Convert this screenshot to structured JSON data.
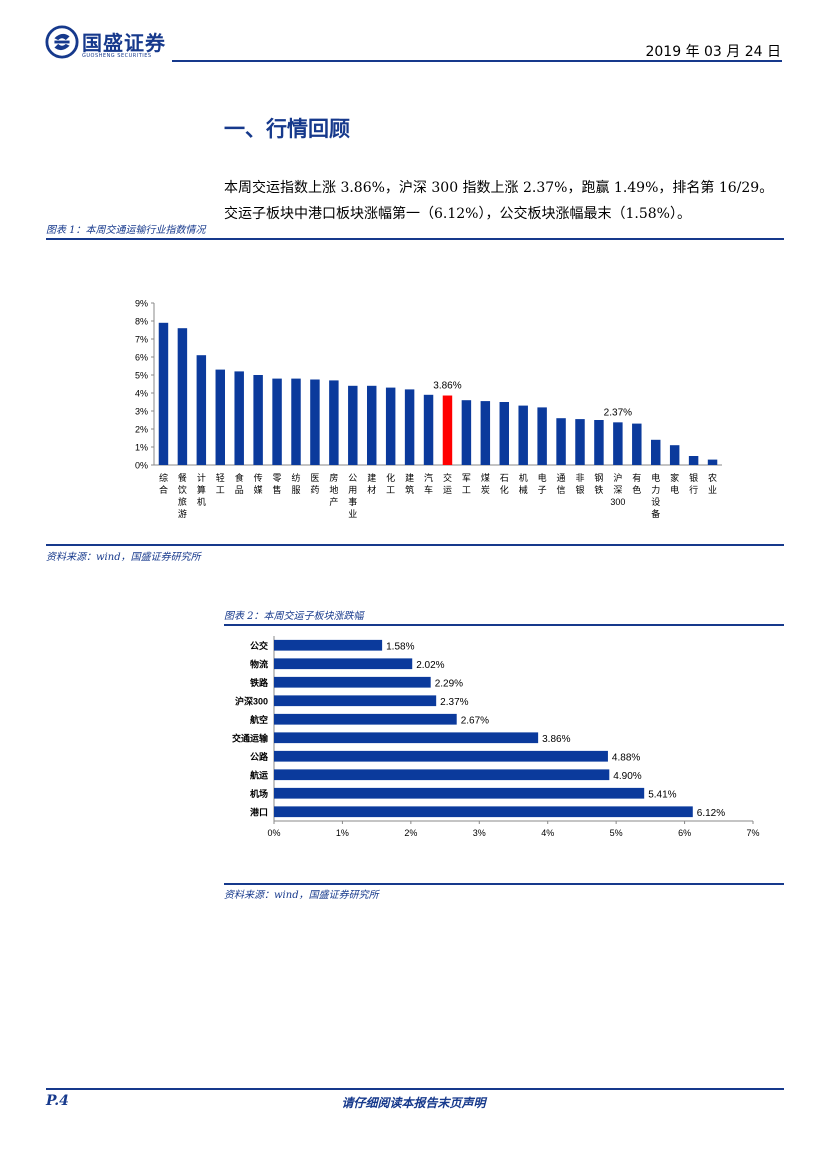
{
  "header": {
    "logo_name": "国盛证券",
    "logo_sub": "GUOSHENG SECURITIES",
    "date": "2019 年 03 月 24 日"
  },
  "section": {
    "title": "一、行情回顾",
    "paragraph": "本周交运指数上涨 3.86%，沪深 300 指数上涨 2.37%，跑赢 1.49%，排名第 16/29。交运子板块中港口板块涨幅第一（6.12%），公交板块涨幅最末（1.58%）。"
  },
  "figure1": {
    "title": "图表 1：本周交通运输行业指数情况",
    "source": "资料来源：wind，国盛证券研究所"
  },
  "figure2": {
    "title": "图表 2：本周交运子板块涨跌幅",
    "source": "资料来源：wind，国盛证券研究所"
  },
  "footer": {
    "page": "P.4",
    "disclaimer": "请仔细阅读本报告末页声明"
  },
  "colors": {
    "brand": "#16398c",
    "bar": "#0b3a9c",
    "highlight": "#ff0000"
  },
  "chart_data": [
    {
      "type": "bar",
      "categories": [
        "综合",
        "餐饮旅游",
        "计算机",
        "轻工",
        "食品",
        "传媒",
        "零售",
        "纺服",
        "医药",
        "房地产",
        "公用事业",
        "建材",
        "化工",
        "建筑",
        "汽车",
        "交运",
        "军工",
        "煤炭",
        "石化",
        "机械",
        "电子",
        "通信",
        "非银",
        "钢铁",
        "沪深300",
        "有色",
        "电力设备",
        "家电",
        "银行",
        "农业"
      ],
      "values": [
        7.9,
        7.6,
        6.1,
        5.3,
        5.2,
        5.0,
        4.8,
        4.8,
        4.75,
        4.7,
        4.4,
        4.4,
        4.3,
        4.2,
        3.9,
        3.86,
        3.6,
        3.55,
        3.5,
        3.3,
        3.2,
        2.6,
        2.55,
        2.5,
        2.37,
        2.3,
        1.4,
        1.1,
        0.5,
        0.3
      ],
      "highlight": "交运",
      "data_labels": [
        {
          "category": "交运",
          "text": "3.86%"
        },
        {
          "category": "沪深300",
          "text": "2.37%"
        }
      ],
      "yticks": [
        "0%",
        "1%",
        "2%",
        "3%",
        "4%",
        "5%",
        "6%",
        "7%",
        "8%",
        "9%"
      ],
      "ylim": [
        0,
        9
      ],
      "grid": false
    },
    {
      "type": "bar",
      "orientation": "horizontal",
      "categories": [
        "公交",
        "物流",
        "铁路",
        "沪深300",
        "航空",
        "交通运输",
        "公路",
        "航运",
        "机场",
        "港口"
      ],
      "values": [
        1.58,
        2.02,
        2.29,
        2.37,
        2.67,
        3.86,
        4.88,
        4.9,
        5.41,
        6.12
      ],
      "labels": [
        "1.58%",
        "2.02%",
        "2.29%",
        "2.37%",
        "2.67%",
        "3.86%",
        "4.88%",
        "4.90%",
        "5.41%",
        "6.12%"
      ],
      "xticks": [
        "0%",
        "1%",
        "2%",
        "3%",
        "4%",
        "5%",
        "6%",
        "7%"
      ],
      "xlim": [
        0,
        7
      ],
      "grid": false
    }
  ]
}
